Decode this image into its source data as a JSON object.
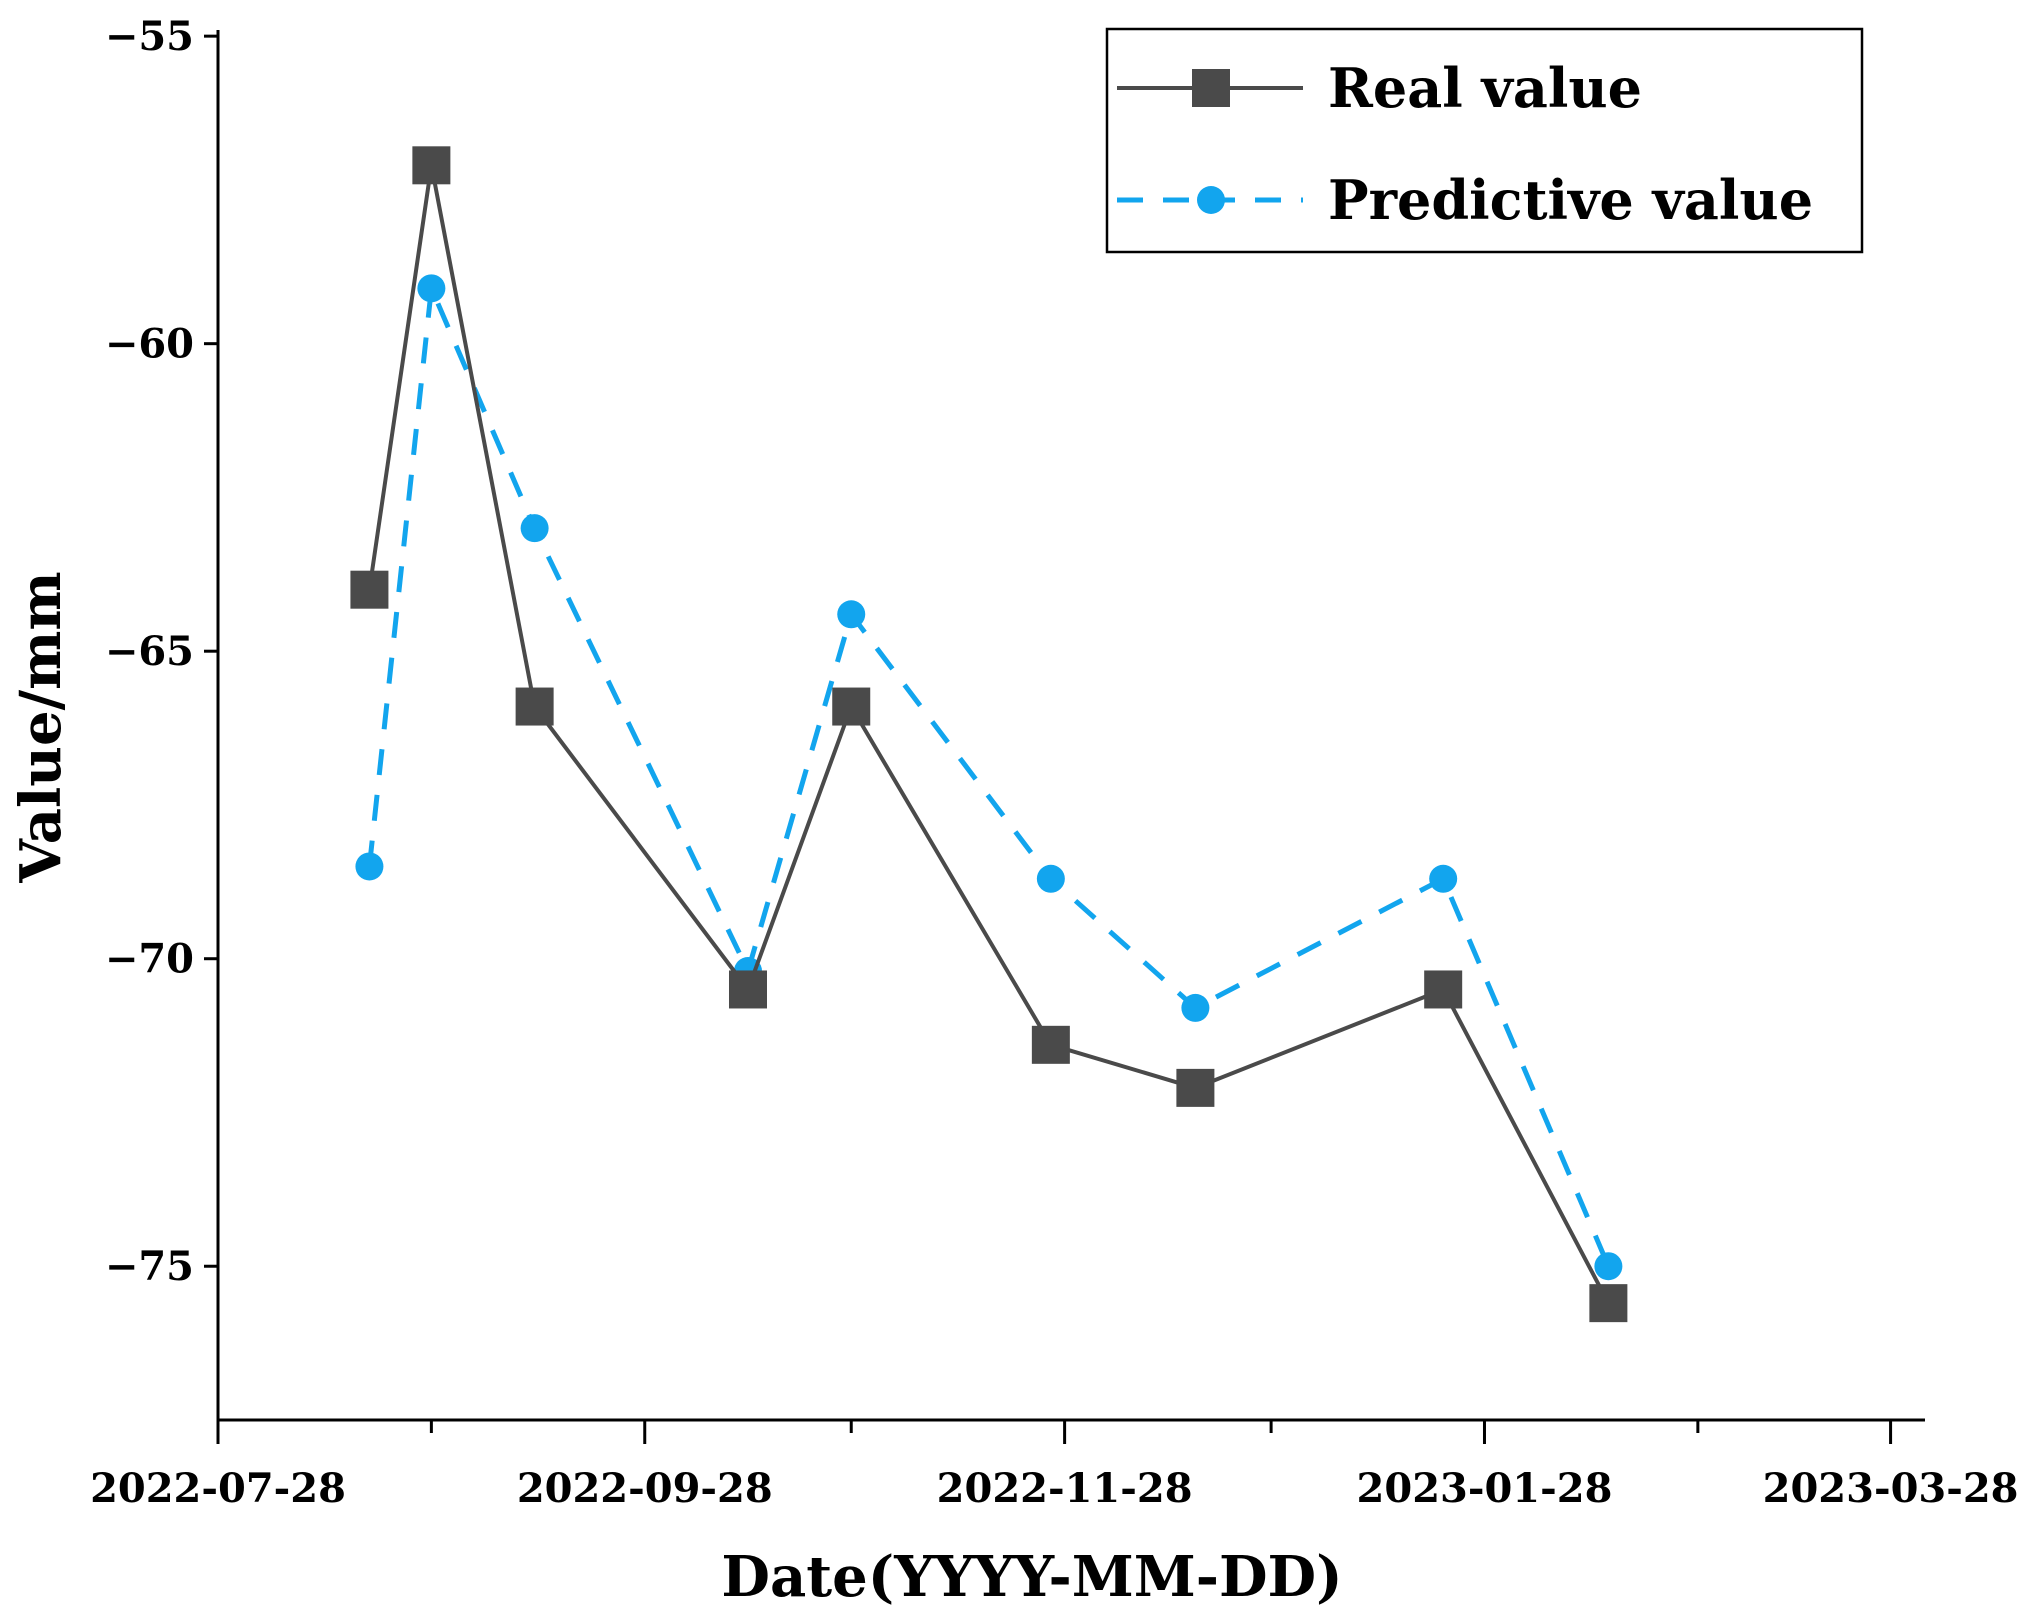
{
  "chart_data": {
    "type": "line",
    "title": "",
    "xlabel": "Date(YYYY-MM-DD)",
    "ylabel": "Value/mm",
    "xlim": [
      "2022-07-28",
      "2023-04-02"
    ],
    "ylim": [
      -77.5,
      -54.9
    ],
    "x_ticks": [
      "2022-07-28",
      "2022-09-28",
      "2022-11-28",
      "2023-01-28",
      "2023-03-28"
    ],
    "x_minor_ticks": [
      "2022-08-28",
      "2022-10-28",
      "2022-12-28",
      "2023-02-28"
    ],
    "y_ticks": [
      -55,
      -60,
      -65,
      -70,
      -75
    ],
    "y_tick_labels": [
      "−55",
      "−60",
      "−65",
      "−70",
      "−75"
    ],
    "grid": false,
    "legend_position": "top-right",
    "x": [
      "2022-08-19",
      "2022-08-28",
      "2022-09-12",
      "2022-10-13",
      "2022-10-28",
      "2022-11-26",
      "2022-12-17",
      "2023-01-22",
      "2023-02-15"
    ],
    "series": [
      {
        "name": "Real value",
        "style": "solid",
        "marker": "square",
        "color": "#4a4a4a",
        "values": [
          -64.0,
          -57.1,
          -65.9,
          -70.5,
          -65.9,
          -71.4,
          -72.1,
          -70.5,
          -75.6
        ]
      },
      {
        "name": "Predictive value",
        "style": "dashed",
        "marker": "circle",
        "color": "#12a5ee",
        "values": [
          -68.5,
          -59.1,
          -63.0,
          -70.2,
          -64.4,
          -68.7,
          -70.8,
          -68.7,
          -75.0
        ]
      }
    ]
  }
}
